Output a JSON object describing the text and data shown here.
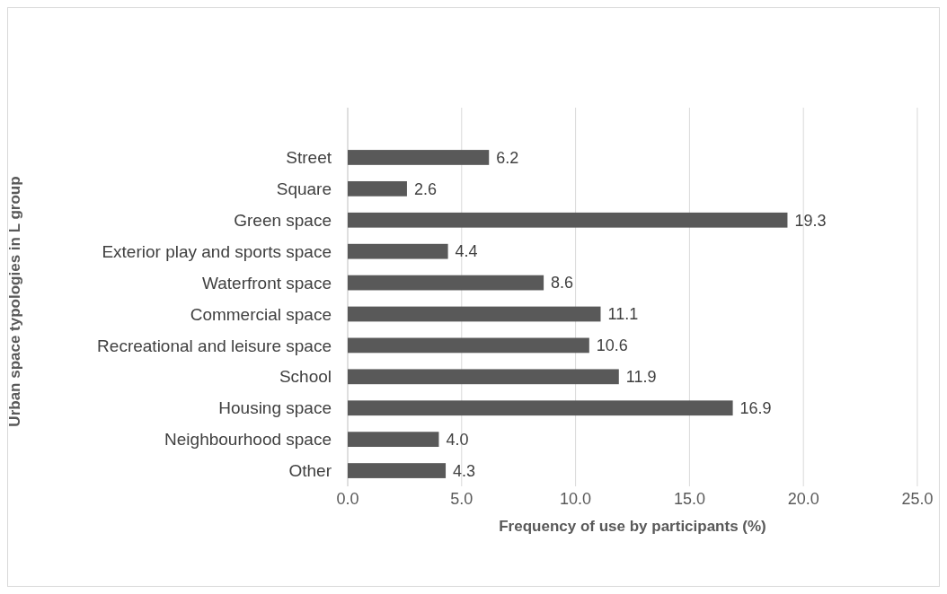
{
  "chart_data": {
    "type": "bar",
    "orientation": "horizontal",
    "xlabel": "Frequency of use by participants (%)",
    "ylabel": "Urban space typologies in L group",
    "categories": [
      "Street",
      "Square",
      "Green space",
      "Exterior play and sports space",
      "Waterfront space",
      "Commercial space",
      "Recreational and leisure space",
      "School",
      "Housing space",
      "Neighbourhood space",
      "Other"
    ],
    "values": [
      6.2,
      2.6,
      19.3,
      4.4,
      8.6,
      11.1,
      10.6,
      11.9,
      16.9,
      4.0,
      4.3
    ],
    "color": "#595959",
    "data_labels": true,
    "value_labels": [
      "6.2",
      "2.6",
      "19.3",
      "4.4",
      "8.6",
      "11.1",
      "10.6",
      "11.9",
      "16.9",
      "4.0",
      "4.3"
    ],
    "xlim": [
      0,
      25
    ],
    "xticks": [
      {
        "value": 0,
        "label": "0.0"
      },
      {
        "value": 5,
        "label": "5.0"
      },
      {
        "value": 10,
        "label": "10.0"
      },
      {
        "value": 15,
        "label": "15.0"
      },
      {
        "value": 20,
        "label": "20.0"
      },
      {
        "value": 25,
        "label": "25.0"
      }
    ],
    "grid": "x"
  }
}
